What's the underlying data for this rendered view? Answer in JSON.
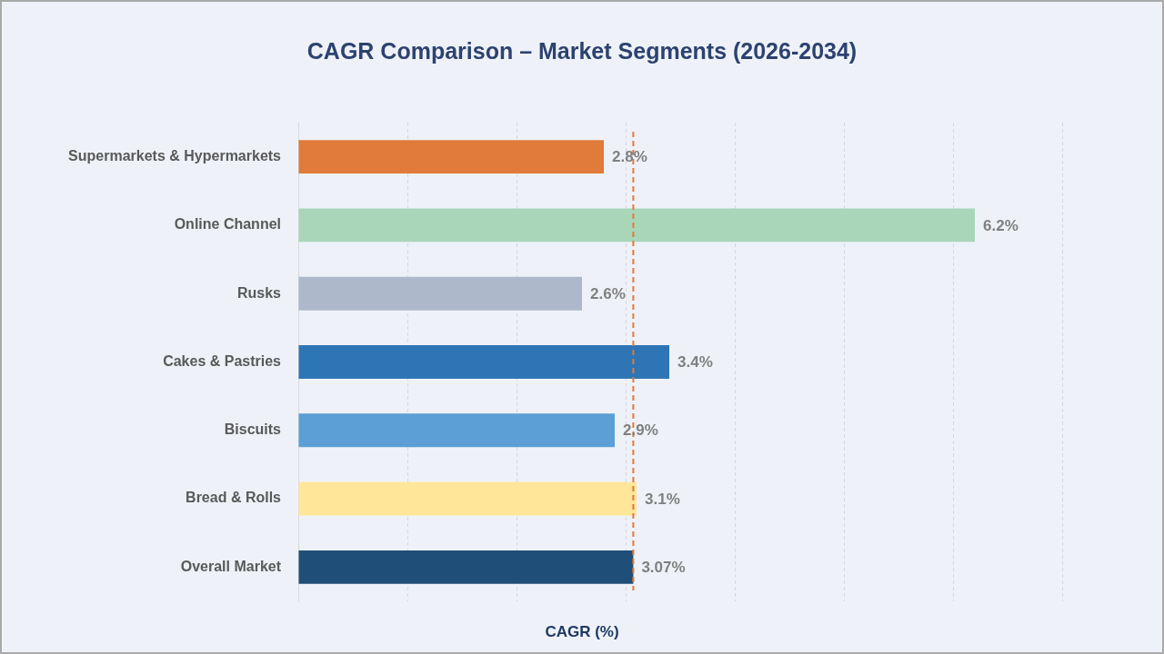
{
  "chart_data": {
    "type": "bar",
    "orientation": "horizontal",
    "title": "CAGR Comparison – Market Segments (2026-2034)",
    "xlabel": "CAGR (%)",
    "categories": [
      "Supermarkets & Hypermarkets",
      "Online Channel",
      "Rusks",
      "Cakes & Pastries",
      "Biscuits",
      "Bread & Rolls",
      "Overall Market"
    ],
    "values": [
      2.8,
      6.2,
      2.6,
      3.4,
      2.9,
      3.1,
      3.07
    ],
    "colors": [
      "#e07b39",
      "#a9d6b9",
      "#adb8ca",
      "#2e75b6",
      "#5b9fd6",
      "#ffe699",
      "#1f4e79"
    ],
    "value_labels": [
      "2.8%",
      "6.2%",
      "2.6%",
      "3.4%",
      "2.9%",
      "3.1%",
      "3.07%"
    ],
    "xlim": [
      0,
      7
    ],
    "xticks": [
      {
        "value": 0,
        "label": null
      },
      {
        "value": 1,
        "label": null
      },
      {
        "value": 2,
        "label": null
      },
      {
        "value": 3,
        "label": null
      },
      {
        "value": 4,
        "label": null
      },
      {
        "value": 5,
        "label": null
      },
      {
        "value": 6,
        "label": null
      },
      {
        "value": 7,
        "label": null
      }
    ],
    "grid": "x",
    "tick_labels": "y",
    "ref_lines": [
      {
        "axis": "x",
        "value": 3.07,
        "color": "#e07b39",
        "line_style": "dashed"
      }
    ]
  }
}
